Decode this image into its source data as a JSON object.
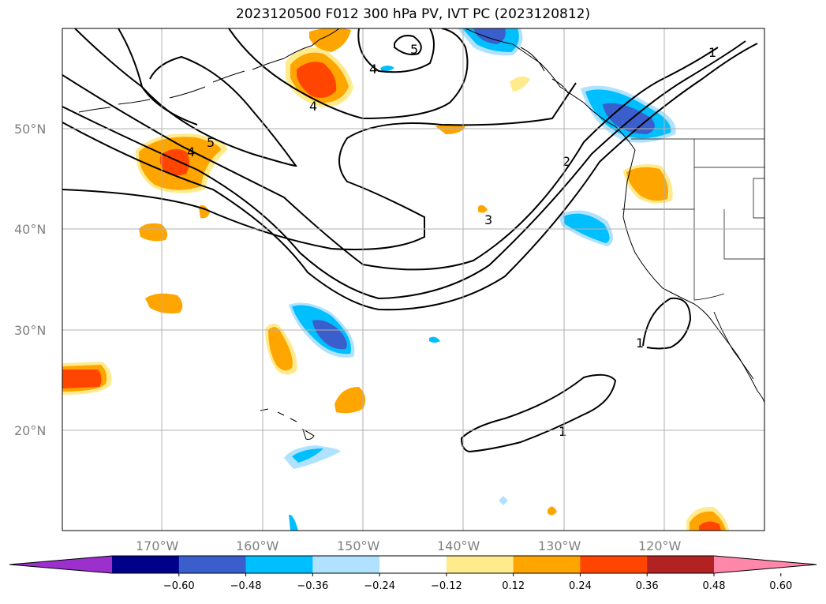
{
  "title": "2023120500 F012 300 hPa PV, IVT PC (2023120812)",
  "lat_labels": [
    "50°N",
    "40°N",
    "30°N",
    "20°N"
  ],
  "lon_labels": [
    "170°W",
    "160°W",
    "150°W",
    "140°W",
    "130°W",
    "120°W"
  ],
  "colorbar": {
    "colors": [
      "#9b30cc",
      "#00008b",
      "#3a5fcd",
      "#00bfff",
      "#b0e2ff",
      "#ffffff",
      "#ffea8c",
      "#ffa500",
      "#ff4500",
      "#b22222",
      "#ff88aa"
    ],
    "tick_labels": [
      "−0.60",
      "−0.48",
      "−0.36",
      "−0.24",
      "−0.12",
      "0.12",
      "0.24",
      "0.36",
      "0.48",
      "0.60"
    ]
  },
  "contour_labels": [
    "5",
    "4",
    "4",
    "4",
    "5",
    "3",
    "2",
    "1",
    "1",
    "1"
  ]
}
